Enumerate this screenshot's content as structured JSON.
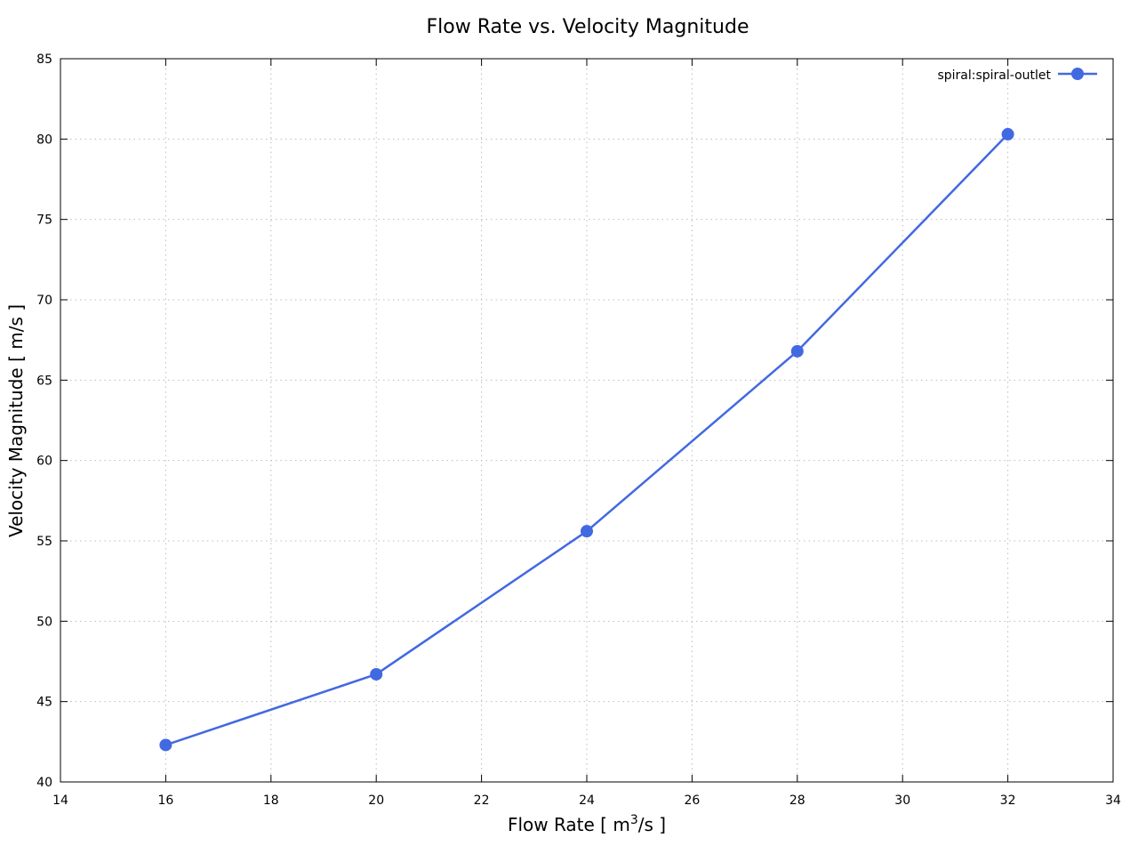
{
  "chart_data": {
    "type": "line",
    "title": "Flow Rate vs. Velocity Magnitude",
    "xlabel_main": "Flow Rate [ m",
    "xlabel_sup": "3",
    "xlabel_tail": "/s ]",
    "ylabel": "Velocity Magnitude [ m/s ]",
    "xlim": [
      14,
      34
    ],
    "ylim": [
      40,
      85
    ],
    "xticks": [
      14,
      16,
      18,
      20,
      22,
      24,
      26,
      28,
      30,
      32,
      34
    ],
    "yticks": [
      40,
      45,
      50,
      55,
      60,
      65,
      70,
      75,
      80,
      85
    ],
    "grid": true,
    "legend_position": "top-right",
    "series": [
      {
        "name": "spiral:spiral-outlet",
        "color": "#4169E1",
        "marker": "circle",
        "x": [
          16,
          20,
          24,
          28,
          32
        ],
        "y": [
          42.3,
          46.7,
          55.6,
          66.8,
          80.3
        ]
      }
    ]
  }
}
